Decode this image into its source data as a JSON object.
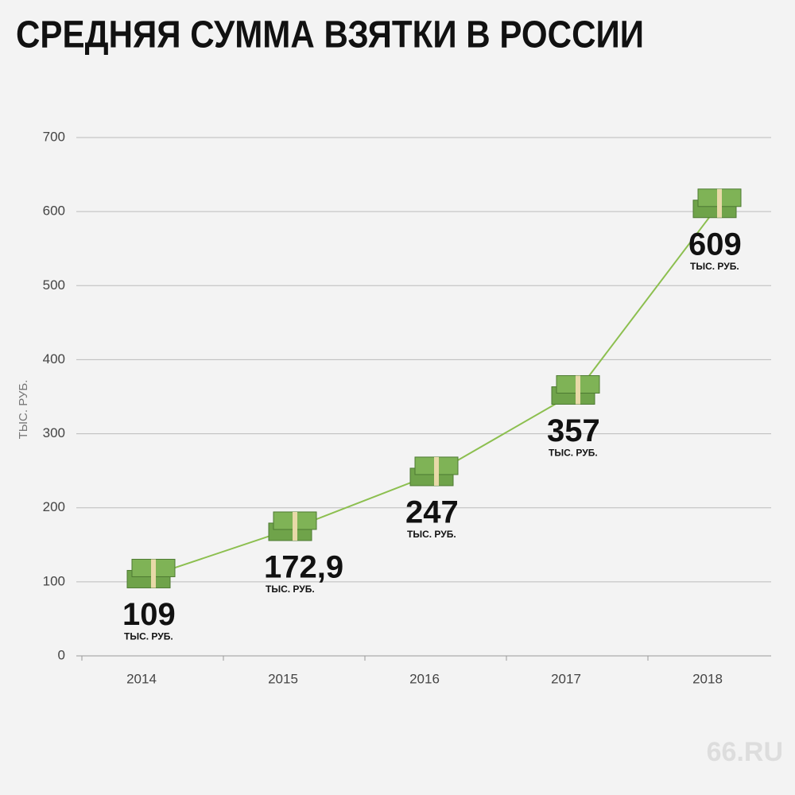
{
  "chart_data": {
    "type": "line",
    "title": "СРЕДНЯЯ СУММА ВЗЯТКИ В РОССИИ",
    "ylabel": "ТЫС. РУБ.",
    "value_unit": "ТЫС. РУБ.",
    "categories": [
      "2014",
      "2015",
      "2016",
      "2017",
      "2018"
    ],
    "values": [
      109,
      172.9,
      247,
      357,
      609
    ],
    "value_labels": [
      "109",
      "172,9",
      "247",
      "357",
      "609"
    ],
    "color": "#8cbf4f",
    "ylim": [
      0,
      700
    ],
    "yticks": [
      0,
      100,
      200,
      300,
      400,
      500,
      600,
      700
    ],
    "grid": true,
    "watermark": "66.RU"
  }
}
